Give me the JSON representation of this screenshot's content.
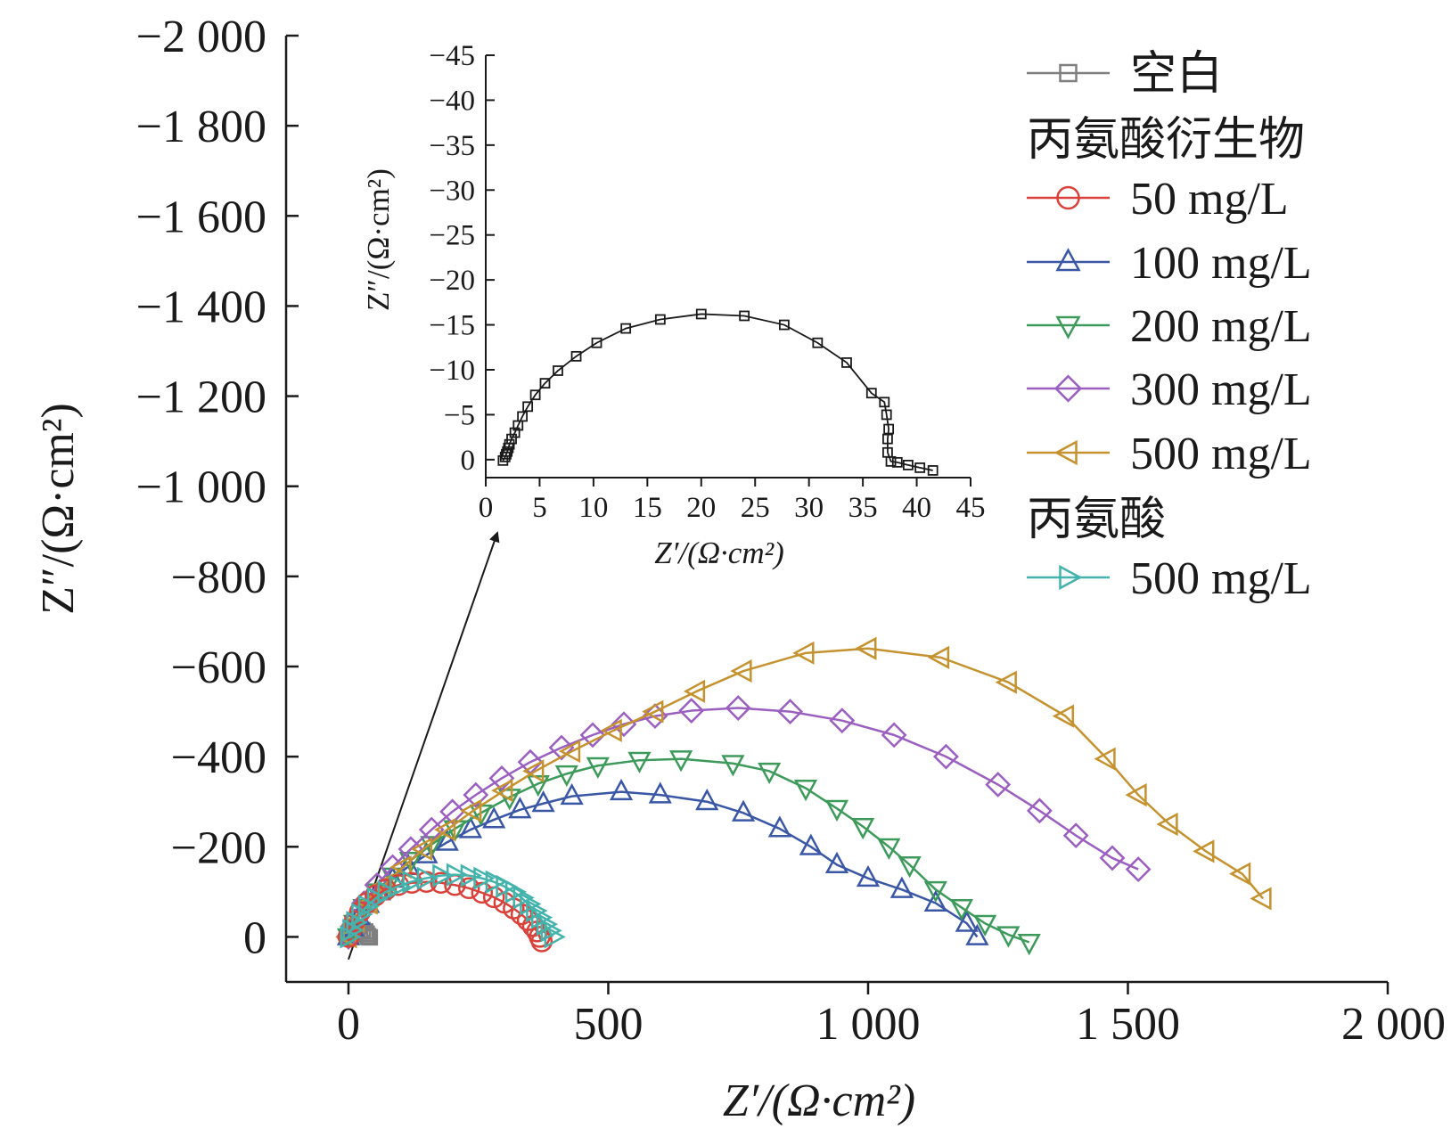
{
  "chart_data": [
    {
      "type": "line",
      "plot": "main",
      "xlabel": "Z′/(Ω·cm²)",
      "ylabel": "Z″/(Ω·cm²)",
      "xlim": [
        -120,
        2000
      ],
      "ylim": [
        100,
        -2000
      ],
      "y_axis_inverted": true,
      "x_ticks": [
        0,
        500,
        1000,
        1500,
        2000
      ],
      "x_tick_labels": [
        "0",
        "500",
        "1 000",
        "1 500",
        "2 000"
      ],
      "y_ticks": [
        0,
        -200,
        -400,
        -600,
        -800,
        -1000,
        -1200,
        -1400,
        -1600,
        -1800,
        -2000
      ],
      "y_tick_labels": [
        "0",
        "−200",
        "−400",
        "−600",
        "−800",
        "−1 000",
        "−1 200",
        "−1 400",
        "−1 600",
        "−1 800",
        "−2 000"
      ],
      "grid": false,
      "legend_position": "top-right",
      "legend": [
        {
          "kind": "entry",
          "label": "空白",
          "series": 0
        },
        {
          "kind": "header",
          "label": "丙氨酸衍生物"
        },
        {
          "kind": "entry",
          "label": "50 mg/L",
          "series": 1
        },
        {
          "kind": "entry",
          "label": "100 mg/L",
          "series": 2
        },
        {
          "kind": "entry",
          "label": "200 mg/L",
          "series": 3
        },
        {
          "kind": "entry",
          "label": "300 mg/L",
          "series": 4
        },
        {
          "kind": "entry",
          "label": "500 mg/L",
          "series": 5
        },
        {
          "kind": "header",
          "label": "丙氨酸"
        },
        {
          "kind": "entry",
          "label": "500 mg/L",
          "series": 6
        }
      ],
      "series": [
        {
          "color": "#7f7f7f",
          "marker": "square",
          "points": [
            [
              1.5,
              0
            ],
            [
              2,
              -1
            ],
            [
              3,
              -2
            ],
            [
              5,
              -4
            ],
            [
              8,
              -7
            ],
            [
              12,
              -10
            ],
            [
              17,
              -13
            ],
            [
              22,
              -15
            ],
            [
              27,
              -15
            ],
            [
              32,
              -12
            ],
            [
              35,
              -7
            ],
            [
              37,
              -2
            ],
            [
              38,
              0
            ],
            [
              41,
              1
            ]
          ]
        },
        {
          "color": "#d9413a",
          "marker": "circle",
          "points": [
            [
              0,
              0
            ],
            [
              5,
              -15
            ],
            [
              12,
              -35
            ],
            [
              22,
              -55
            ],
            [
              35,
              -75
            ],
            [
              52,
              -92
            ],
            [
              72,
              -105
            ],
            [
              96,
              -115
            ],
            [
              122,
              -120
            ],
            [
              150,
              -122
            ],
            [
              178,
              -120
            ],
            [
              205,
              -115
            ],
            [
              232,
              -108
            ],
            [
              257,
              -98
            ],
            [
              280,
              -88
            ],
            [
              300,
              -76
            ],
            [
              318,
              -63
            ],
            [
              333,
              -50
            ],
            [
              345,
              -37
            ],
            [
              355,
              -24
            ],
            [
              363,
              -12
            ],
            [
              368,
              0
            ],
            [
              372,
              10
            ]
          ]
        },
        {
          "color": "#3a57a6",
          "marker": "triangle-up",
          "points": [
            [
              0,
              0
            ],
            [
              8,
              -20
            ],
            [
              20,
              -45
            ],
            [
              38,
              -72
            ],
            [
              60,
              -100
            ],
            [
              85,
              -128
            ],
            [
              115,
              -156
            ],
            [
              150,
              -182
            ],
            [
              190,
              -210
            ],
            [
              235,
              -238
            ],
            [
              280,
              -260
            ],
            [
              330,
              -282
            ],
            [
              375,
              -296
            ],
            [
              430,
              -312
            ],
            [
              525,
              -322
            ],
            [
              600,
              -315
            ],
            [
              690,
              -300
            ],
            [
              760,
              -275
            ],
            [
              830,
              -240
            ],
            [
              890,
              -200
            ],
            [
              940,
              -160
            ],
            [
              1000,
              -130
            ],
            [
              1065,
              -105
            ],
            [
              1130,
              -75
            ],
            [
              1190,
              -30
            ],
            [
              1210,
              0
            ]
          ]
        },
        {
          "color": "#3d9a5b",
          "marker": "triangle-down",
          "points": [
            [
              0,
              0
            ],
            [
              12,
              -30
            ],
            [
              30,
              -65
            ],
            [
              55,
              -100
            ],
            [
              85,
              -135
            ],
            [
              120,
              -170
            ],
            [
              160,
              -205
            ],
            [
              205,
              -240
            ],
            [
              255,
              -275
            ],
            [
              310,
              -310
            ],
            [
              365,
              -340
            ],
            [
              420,
              -362
            ],
            [
              480,
              -380
            ],
            [
              560,
              -392
            ],
            [
              640,
              -395
            ],
            [
              740,
              -385
            ],
            [
              810,
              -368
            ],
            [
              880,
              -330
            ],
            [
              940,
              -285
            ],
            [
              990,
              -245
            ],
            [
              1040,
              -200
            ],
            [
              1080,
              -160
            ],
            [
              1130,
              -105
            ],
            [
              1180,
              -65
            ],
            [
              1225,
              -30
            ],
            [
              1270,
              -5
            ],
            [
              1310,
              12
            ]
          ]
        },
        {
          "color": "#9a5fbf",
          "marker": "diamond",
          "points": [
            [
              0,
              0
            ],
            [
              12,
              -35
            ],
            [
              30,
              -75
            ],
            [
              55,
              -115
            ],
            [
              85,
              -155
            ],
            [
              120,
              -195
            ],
            [
              160,
              -238
            ],
            [
              200,
              -278
            ],
            [
              245,
              -315
            ],
            [
              295,
              -352
            ],
            [
              350,
              -388
            ],
            [
              410,
              -420
            ],
            [
              470,
              -448
            ],
            [
              530,
              -472
            ],
            [
              590,
              -490
            ],
            [
              660,
              -502
            ],
            [
              750,
              -508
            ],
            [
              850,
              -500
            ],
            [
              950,
              -480
            ],
            [
              1050,
              -448
            ],
            [
              1150,
              -400
            ],
            [
              1250,
              -338
            ],
            [
              1330,
              -280
            ],
            [
              1400,
              -225
            ],
            [
              1470,
              -175
            ],
            [
              1520,
              -150
            ]
          ]
        },
        {
          "color": "#c4922f",
          "marker": "triangle-left",
          "points": [
            [
              0,
              0
            ],
            [
              15,
              -35
            ],
            [
              40,
              -75
            ],
            [
              70,
              -115
            ],
            [
              105,
              -155
            ],
            [
              145,
              -195
            ],
            [
              190,
              -238
            ],
            [
              240,
              -280
            ],
            [
              300,
              -325
            ],
            [
              360,
              -368
            ],
            [
              430,
              -412
            ],
            [
              510,
              -458
            ],
            [
              590,
              -500
            ],
            [
              670,
              -545
            ],
            [
              760,
              -590
            ],
            [
              880,
              -630
            ],
            [
              1000,
              -640
            ],
            [
              1140,
              -620
            ],
            [
              1270,
              -565
            ],
            [
              1380,
              -490
            ],
            [
              1460,
              -395
            ],
            [
              1520,
              -315
            ],
            [
              1580,
              -250
            ],
            [
              1650,
              -190
            ],
            [
              1720,
              -140
            ],
            [
              1760,
              -85
            ]
          ]
        },
        {
          "color": "#44b3ac",
          "marker": "triangle-right",
          "points": [
            [
              0,
              0
            ],
            [
              5,
              -15
            ],
            [
              12,
              -32
            ],
            [
              22,
              -50
            ],
            [
              35,
              -68
            ],
            [
              52,
              -85
            ],
            [
              72,
              -100
            ],
            [
              95,
              -112
            ],
            [
              120,
              -122
            ],
            [
              148,
              -130
            ],
            [
              178,
              -136
            ],
            [
              205,
              -138
            ],
            [
              232,
              -136
            ],
            [
              257,
              -130
            ],
            [
              280,
              -122
            ],
            [
              300,
              -112
            ],
            [
              318,
              -100
            ],
            [
              333,
              -87
            ],
            [
              346,
              -73
            ],
            [
              358,
              -58
            ],
            [
              368,
              -43
            ],
            [
              378,
              -28
            ],
            [
              386,
              -14
            ],
            [
              393,
              0
            ]
          ]
        }
      ]
    },
    {
      "type": "line",
      "plot": "inset",
      "xlabel": "Z′/(Ω·cm²)",
      "ylabel": "Z″/(Ω·cm²)",
      "xlim": [
        0,
        45
      ],
      "ylim": [
        2,
        -45
      ],
      "y_axis_inverted": true,
      "x_ticks": [
        0,
        5,
        10,
        15,
        20,
        25,
        30,
        35,
        40,
        45
      ],
      "x_tick_labels": [
        "0",
        "5",
        "10",
        "15",
        "20",
        "25",
        "30",
        "35",
        "40",
        "45"
      ],
      "y_ticks": [
        0,
        -5,
        -10,
        -15,
        -20,
        -25,
        -30,
        -35,
        -40,
        -45
      ],
      "y_tick_labels": [
        "0",
        "−5",
        "−10",
        "−15",
        "−20",
        "−25",
        "−30",
        "−35",
        "−40",
        "−45"
      ],
      "grid": false,
      "series": [
        {
          "color": "#1a1a1a",
          "marker": "square",
          "points": [
            [
              1.6,
              0.1
            ],
            [
              1.8,
              -0.3
            ],
            [
              1.9,
              -0.6
            ],
            [
              2.0,
              -0.9
            ],
            [
              2.1,
              -1.3
            ],
            [
              2.2,
              -1.7
            ],
            [
              2.4,
              -2.3
            ],
            [
              2.7,
              -3.0
            ],
            [
              3.0,
              -3.8
            ],
            [
              3.4,
              -4.8
            ],
            [
              3.9,
              -5.9
            ],
            [
              4.6,
              -7.2
            ],
            [
              5.5,
              -8.5
            ],
            [
              6.7,
              -9.9
            ],
            [
              8.4,
              -11.5
            ],
            [
              10.3,
              -13.0
            ],
            [
              13.0,
              -14.6
            ],
            [
              16.2,
              -15.6
            ],
            [
              20.0,
              -16.2
            ],
            [
              24.0,
              -16.0
            ],
            [
              27.7,
              -15.0
            ],
            [
              30.8,
              -13.0
            ],
            [
              33.5,
              -10.8
            ],
            [
              35.8,
              -7.4
            ],
            [
              37.0,
              -6.4
            ],
            [
              37.2,
              -5.0
            ],
            [
              37.4,
              -3.4
            ],
            [
              37.3,
              -2.3
            ],
            [
              37.3,
              -0.8
            ],
            [
              37.6,
              0.2
            ],
            [
              38.2,
              0.3
            ],
            [
              39.2,
              0.6
            ],
            [
              40.3,
              0.9
            ],
            [
              41.5,
              1.2
            ]
          ]
        }
      ]
    }
  ]
}
